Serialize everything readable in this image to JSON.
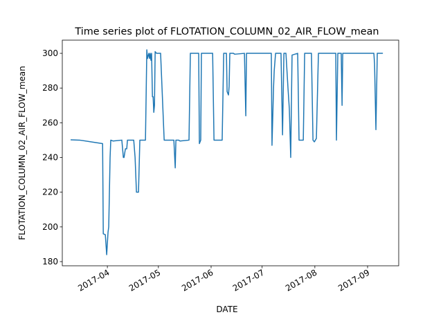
{
  "chart_data": {
    "type": "line",
    "title": "Time series plot of FLOTATION_COLUMN_02_AIR_FLOW_mean",
    "x_label": "DATE",
    "y_label": "FLOTATION_COLUMN_02_AIR_FLOW_mean",
    "x": [
      17235.4,
      17240.7,
      17254.2,
      17254.6,
      17255.8,
      17256.6,
      17257.4,
      17257.8,
      17258.6,
      17259.0,
      17260.3,
      17265.5,
      17266.4,
      17266.8,
      17267.6,
      17268.4,
      17268.8,
      17272.5,
      17273.3,
      17274.1,
      17275.3,
      17276.1,
      17279.4,
      17280.2,
      17280.6,
      17281.4,
      17281.8,
      17282.2,
      17282.6,
      17283.0,
      17283.5,
      17283.9,
      17284.3,
      17284.7,
      17285.1,
      17285.9,
      17288.3,
      17290.4,
      17296.1,
      17296.9,
      17297.3,
      17298.9,
      17299.7,
      17305.0,
      17305.8,
      17310.7,
      17311.1,
      17311.9,
      17312.3,
      17313.6,
      17318.9,
      17319.7,
      17324.5,
      17325.4,
      17327.0,
      17327.4,
      17328.2,
      17328.6,
      17329.0,
      17331.1,
      17331.9,
      17337.6,
      17338.4,
      17338.8,
      17341.6,
      17353.4,
      17353.8,
      17354.7,
      17355.1,
      17355.9,
      17359.1,
      17360.0,
      17360.8,
      17362.0,
      17363.2,
      17364.0,
      17364.8,
      17365.6,
      17368.9,
      17369.7,
      17372.2,
      17373.0,
      17377.0,
      17377.9,
      17378.7,
      17379.9,
      17381.1,
      17391.3,
      17391.7,
      17392.5,
      17394.5,
      17395.0,
      17395.4,
      17413.7,
      17414.1,
      17414.9,
      17415.7,
      17419.0
    ],
    "series": [
      {
        "name": "FLOTATION_COLUMN_02_AIR_FLOW_mean",
        "color": "#1f77b4",
        "values": [
          250.2,
          250,
          248,
          196,
          195.5,
          184,
          197,
          200,
          240,
          250,
          249.5,
          250,
          240,
          240,
          245,
          245,
          250,
          250,
          240,
          220,
          220,
          250,
          250,
          302,
          297,
          300,
          297,
          300,
          296,
          300,
          275,
          275,
          266,
          270,
          301,
          300,
          300,
          250,
          250,
          234,
          250,
          250,
          249.5,
          250,
          300,
          300,
          248,
          250,
          300,
          300,
          300,
          250,
          250,
          300,
          300,
          278,
          276,
          281,
          300,
          300,
          299.5,
          300,
          264,
          300,
          300,
          300,
          247,
          280,
          290,
          300,
          300,
          253,
          300,
          300,
          280,
          268,
          240,
          299,
          300,
          250,
          250,
          300,
          300,
          250,
          249,
          251,
          300,
          300,
          250,
          300,
          300,
          270,
          300,
          300,
          294,
          256,
          300,
          300
        ]
      }
    ],
    "xlim": [
      17230.5,
      17428.3
    ],
    "xticks": [
      {
        "value": 17257,
        "label": "2017-04"
      },
      {
        "value": 17287,
        "label": "2017-05"
      },
      {
        "value": 17318,
        "label": "2017-06"
      },
      {
        "value": 17348,
        "label": "2017-07"
      },
      {
        "value": 17379,
        "label": "2017-08"
      },
      {
        "value": 17410,
        "label": "2017-09"
      }
    ],
    "ylim": [
      177.6,
      307.6
    ],
    "yticks": [
      180,
      200,
      220,
      240,
      260,
      280,
      300
    ]
  }
}
